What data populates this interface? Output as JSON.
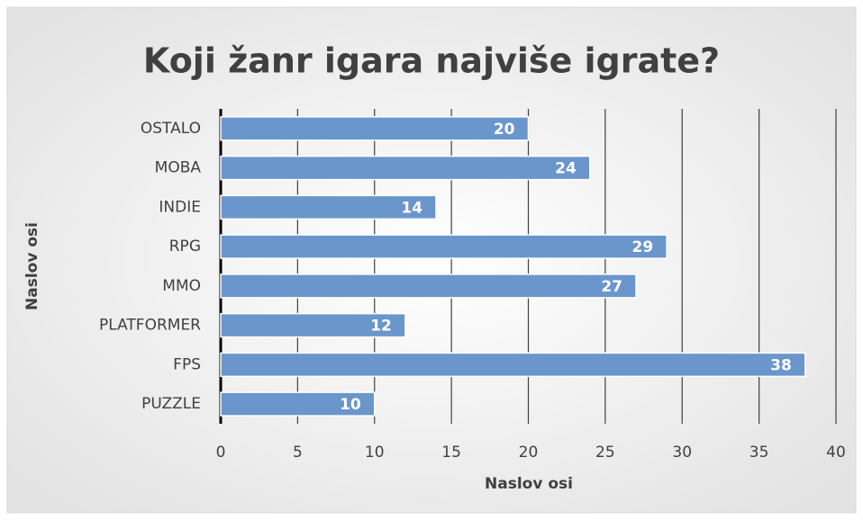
{
  "chart_data": {
    "type": "barh",
    "title": "Koji žanr igara najviše igrate?",
    "categories": [
      "OSTALO",
      "MOBA",
      "INDIE",
      "RPG",
      "MMO",
      "PLATFORMER",
      "FPS",
      "PUZZLE"
    ],
    "values": [
      20,
      24,
      14,
      29,
      27,
      12,
      38,
      10
    ],
    "color": "#6a96cc",
    "xlim": [
      0,
      40
    ],
    "xticks": [
      0,
      5,
      10,
      15,
      20,
      25,
      30,
      35,
      40
    ],
    "x_label": "Naslov osi",
    "y_label": "Naslov osi",
    "grid": true
  }
}
